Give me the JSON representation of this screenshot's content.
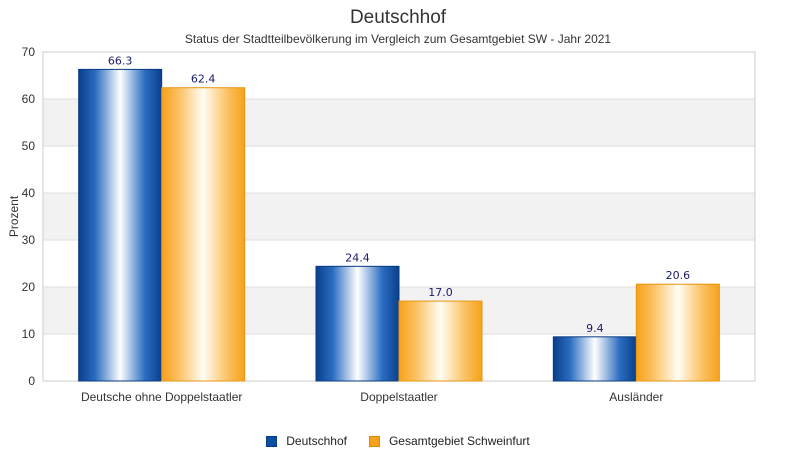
{
  "chart_data": {
    "type": "bar",
    "title": "Deutschhof",
    "subtitle": "Status der Stadtteilbevölkerung im Vergleich zum Gesamtgebiet SW - Jahr 2021",
    "xlabel": "",
    "ylabel": "Prozent",
    "ylim": [
      0,
      70
    ],
    "yticks": [
      0,
      10,
      20,
      30,
      40,
      50,
      60,
      70
    ],
    "categories": [
      "Deutsche ohne Doppelstaatler",
      "Doppelstaatler",
      "Ausländer"
    ],
    "series": [
      {
        "name": "Deutschhof",
        "values": [
          66.3,
          24.4,
          9.4
        ],
        "color": "#0b4ea2",
        "labels": [
          "66.3",
          "24.4",
          "9.4"
        ]
      },
      {
        "name": "Gesamtgebiet Schweinfurt",
        "values": [
          62.4,
          17.0,
          20.6
        ],
        "color": "#f7a21b",
        "labels": [
          "62.4",
          "17.0",
          "20.6"
        ]
      }
    ],
    "grid": true,
    "legend": "bottom"
  }
}
